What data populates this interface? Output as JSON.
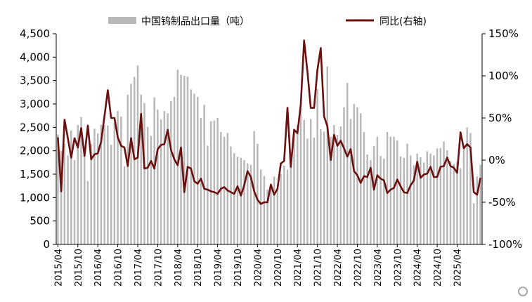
{
  "chart_data": {
    "type": "bar+line",
    "legend": {
      "bar_label": "中国钨制品出口量（吨）",
      "line_label": "同比(右轴)",
      "placement": "top"
    },
    "y_left": {
      "min": 0,
      "max": 4500,
      "ticks": [
        "0",
        "500",
        "1,000",
        "1,500",
        "2,000",
        "2,500",
        "3,000",
        "3,500",
        "4,000",
        "4,500"
      ]
    },
    "y_right": {
      "min": -100,
      "max": 150,
      "ticks": [
        "-100%",
        "-50%",
        "0%",
        "50%",
        "100%",
        "150%"
      ]
    },
    "x_ticks": [
      "2015/04",
      "2015/10",
      "2016/04",
      "2016/10",
      "2017/04",
      "2017/10",
      "2018/04",
      "2018/10",
      "2019/04",
      "2019/10",
      "2020/04",
      "2020/10",
      "2021/04",
      "2021/10",
      "2022/04",
      "2022/10",
      "2023/04",
      "2023/10",
      "2024/04",
      "2024/10",
      "2025/04"
    ],
    "start_month": "2015/04",
    "bar_values": [
      2350,
      2000,
      2150,
      1900,
      2430,
      1800,
      2550,
      2720,
      2050,
      1350,
      2150,
      2470,
      2370,
      2550,
      2550,
      2540,
      2130,
      2600,
      2850,
      2730,
      1670,
      3200,
      3430,
      3580,
      3820,
      3200,
      3020,
      2510,
      2320,
      3140,
      2880,
      2670,
      2850,
      2800,
      3060,
      3150,
      3730,
      3620,
      3600,
      3580,
      3310,
      3220,
      3150,
      2700,
      2980,
      2110,
      2630,
      2650,
      2700,
      2400,
      2300,
      2380,
      2090,
      1950,
      1870,
      1850,
      1800,
      1730,
      1700,
      2420,
      2150,
      1600,
      1460,
      1170,
      1170,
      1450,
      1200,
      1500,
      1680,
      1600,
      1880,
      2400,
      2550,
      2900,
      2660,
      2260,
      2680,
      2280,
      3320,
      2460,
      2410,
      3800,
      2300,
      2550,
      2340,
      2520,
      2930,
      3450,
      2680,
      3000,
      2930,
      2800,
      2400,
      1920,
      1800,
      2100,
      2300,
      1890,
      1830,
      2400,
      2300,
      2300,
      2220,
      1880,
      1850,
      2150,
      1900,
      1690,
      1940,
      1860,
      1750,
      1990,
      1940,
      1900,
      2050,
      2060,
      2200,
      2010,
      1780,
      1720,
      1760,
      1630,
      2050,
      2500,
      2380,
      880,
      1450,
      1700
    ],
    "line_values": [
      27,
      -37,
      48,
      26,
      3,
      26,
      15,
      38,
      5,
      41,
      1,
      7,
      8,
      22,
      52,
      83,
      50,
      50,
      27,
      17,
      15,
      -7,
      26,
      1,
      3,
      55,
      -10,
      -9,
      -1,
      -10,
      13,
      18,
      19,
      36,
      12,
      1,
      -6,
      15,
      -38,
      -8,
      -10,
      -25,
      -28,
      -22,
      -34,
      -35,
      -37,
      -38,
      -40,
      -34,
      -32,
      -36,
      -38,
      -40,
      -31,
      -42,
      -30,
      -13,
      -20,
      -37,
      -47,
      -52,
      -50,
      -50,
      -29,
      -41,
      -34,
      -4,
      -1,
      62,
      -8,
      36,
      32,
      66,
      142,
      105,
      62,
      62,
      107,
      133,
      52,
      40,
      0,
      30,
      17,
      23,
      14,
      4,
      13,
      -13,
      -18,
      -27,
      -19,
      -20,
      -9,
      -35,
      -18,
      -22,
      -24,
      -39,
      -35,
      -33,
      -23,
      -31,
      -38,
      -39,
      -30,
      -24,
      -2,
      -21,
      -17,
      -16,
      -8,
      -20,
      -20,
      -8,
      -7,
      3,
      -7,
      -9,
      -15,
      33,
      14,
      19,
      15,
      -38,
      -41,
      -21
    ]
  }
}
